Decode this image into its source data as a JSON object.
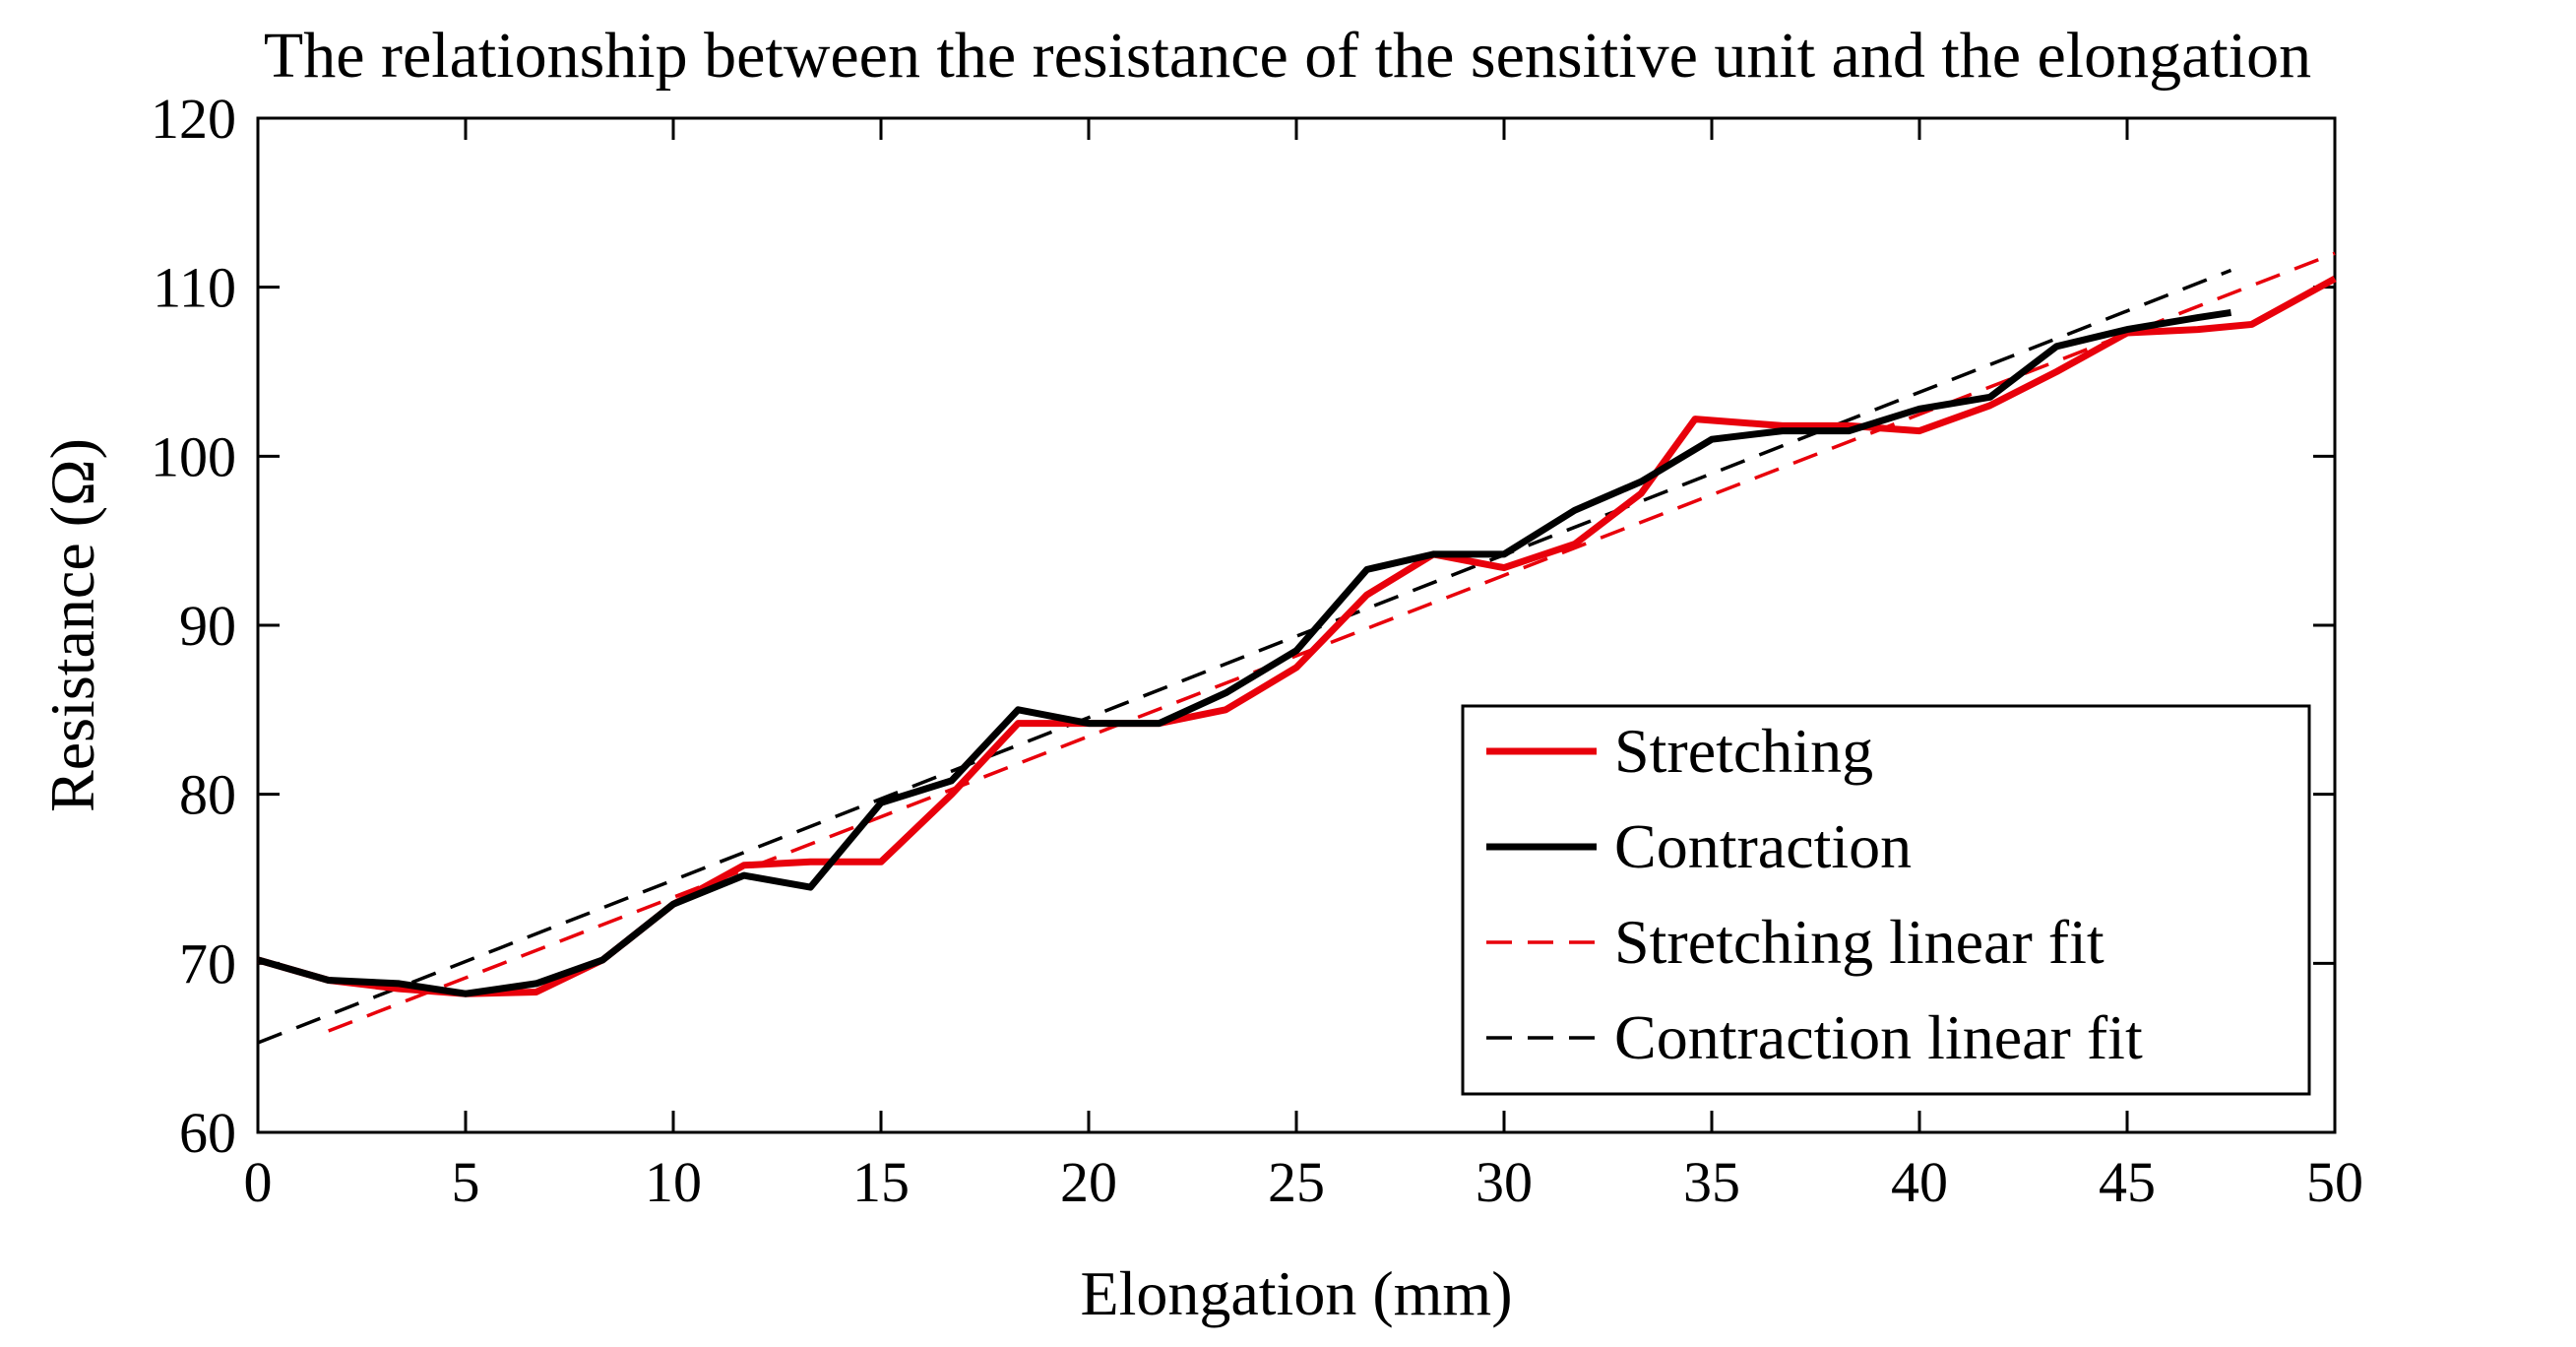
{
  "chart_data": {
    "type": "line",
    "title": "The relationship between the resistance of the sensitive unit and the elongation",
    "xlabel": "Elongation (mm)",
    "ylabel": "Resistance (Ω)",
    "xlim": [
      0,
      50
    ],
    "ylim": [
      60,
      120
    ],
    "xticks": [
      "0",
      "5",
      "10",
      "15",
      "20",
      "25",
      "30",
      "35",
      "40",
      "45",
      "50"
    ],
    "yticks": [
      "60",
      "70",
      "80",
      "90",
      "100",
      "110",
      "120"
    ],
    "grid": false,
    "legend_position": "bottom-right",
    "series": [
      {
        "name": "Stretching",
        "style": "solid",
        "color": "#e8000b",
        "x": [
          0,
          1.7,
          3.4,
          5,
          6.7,
          8.3,
          10,
          11.7,
          13.3,
          15,
          16.7,
          18.3,
          20,
          21.7,
          23.3,
          25,
          26.7,
          28.3,
          30,
          31.7,
          33.3,
          34.6,
          36.7,
          38.3,
          40,
          41.7,
          43.3,
          45,
          46.7,
          48,
          50
        ],
        "y": [
          70.2,
          69,
          68.5,
          68.2,
          68.3,
          70.2,
          73.5,
          75.8,
          76,
          76,
          80,
          84.2,
          84.2,
          84.2,
          85,
          87.5,
          91.8,
          94.2,
          93.4,
          94.8,
          97.8,
          102.2,
          101.8,
          101.8,
          101.5,
          103,
          105,
          107.3,
          107.5,
          107.8,
          110.5
        ]
      },
      {
        "name": "Contraction",
        "style": "solid",
        "color": "#000000",
        "x": [
          0,
          1.7,
          3.4,
          5,
          6.7,
          8.3,
          10,
          11.7,
          13.3,
          15,
          16.7,
          18.3,
          20,
          21.7,
          23.3,
          25,
          26.7,
          28.3,
          30,
          31.7,
          33.3,
          35,
          36.7,
          38.3,
          40,
          41.7,
          43.3,
          45,
          46.7,
          47.5
        ],
        "y": [
          70.2,
          69,
          68.8,
          68.2,
          68.8,
          70.2,
          73.5,
          75.2,
          74.5,
          79.5,
          80.8,
          85,
          84.2,
          84.2,
          86,
          88.5,
          93.3,
          94.2,
          94.2,
          96.8,
          98.5,
          101,
          101.5,
          101.5,
          102.8,
          103.5,
          106.5,
          107.5,
          108.2,
          108.5
        ]
      },
      {
        "name": "Stretching linear fit",
        "style": "dashed",
        "color": "#e8000b",
        "x": [
          1.7,
          50
        ],
        "y": [
          66,
          112
        ]
      },
      {
        "name": "Contraction linear fit",
        "style": "dashed",
        "color": "#000000",
        "x": [
          0,
          47.5
        ],
        "y": [
          65.3,
          111
        ]
      }
    ]
  }
}
